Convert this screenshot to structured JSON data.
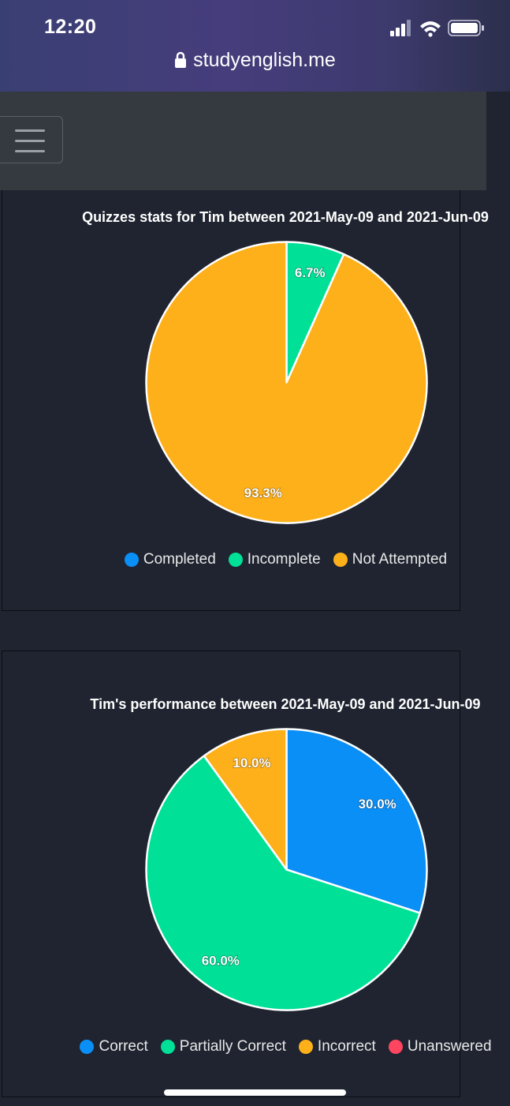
{
  "status": {
    "time": "12:20"
  },
  "browser": {
    "url": "studyenglish.me"
  },
  "charts": {
    "quizzes": {
      "title": "Quizzes stats for Tim between 2021-May-09 and 2021-Jun-09",
      "legend": [
        "Completed",
        "Incomplete",
        "Not Attempted"
      ]
    },
    "performance": {
      "title": "Tim's performance between 2021-May-09 and 2021-Jun-09",
      "legend": [
        "Correct",
        "Partially Correct",
        "Incorrect",
        "Unanswered"
      ]
    }
  },
  "chart_data": [
    {
      "type": "pie",
      "title": "Quizzes stats for Tim between 2021-May-09 and 2021-Jun-09",
      "categories": [
        "Completed",
        "Incomplete",
        "Not Attempted"
      ],
      "values": [
        0,
        6.7,
        93.3
      ],
      "labels": [
        "",
        "6.7%",
        "93.3%"
      ],
      "colors": [
        "#0a8ff7",
        "#00e096",
        "#feb01a"
      ],
      "legend_position": "bottom"
    },
    {
      "type": "pie",
      "title": "Tim's performance between 2021-May-09 and 2021-Jun-09",
      "categories": [
        "Correct",
        "Partially Correct",
        "Incorrect",
        "Unanswered"
      ],
      "values": [
        30.0,
        60.0,
        10.0,
        0
      ],
      "labels": [
        "30.0%",
        "60.0%",
        "10.0%",
        ""
      ],
      "colors": [
        "#0a8ff7",
        "#00e096",
        "#feb01a",
        "#ff4560"
      ],
      "legend_position": "bottom"
    }
  ]
}
